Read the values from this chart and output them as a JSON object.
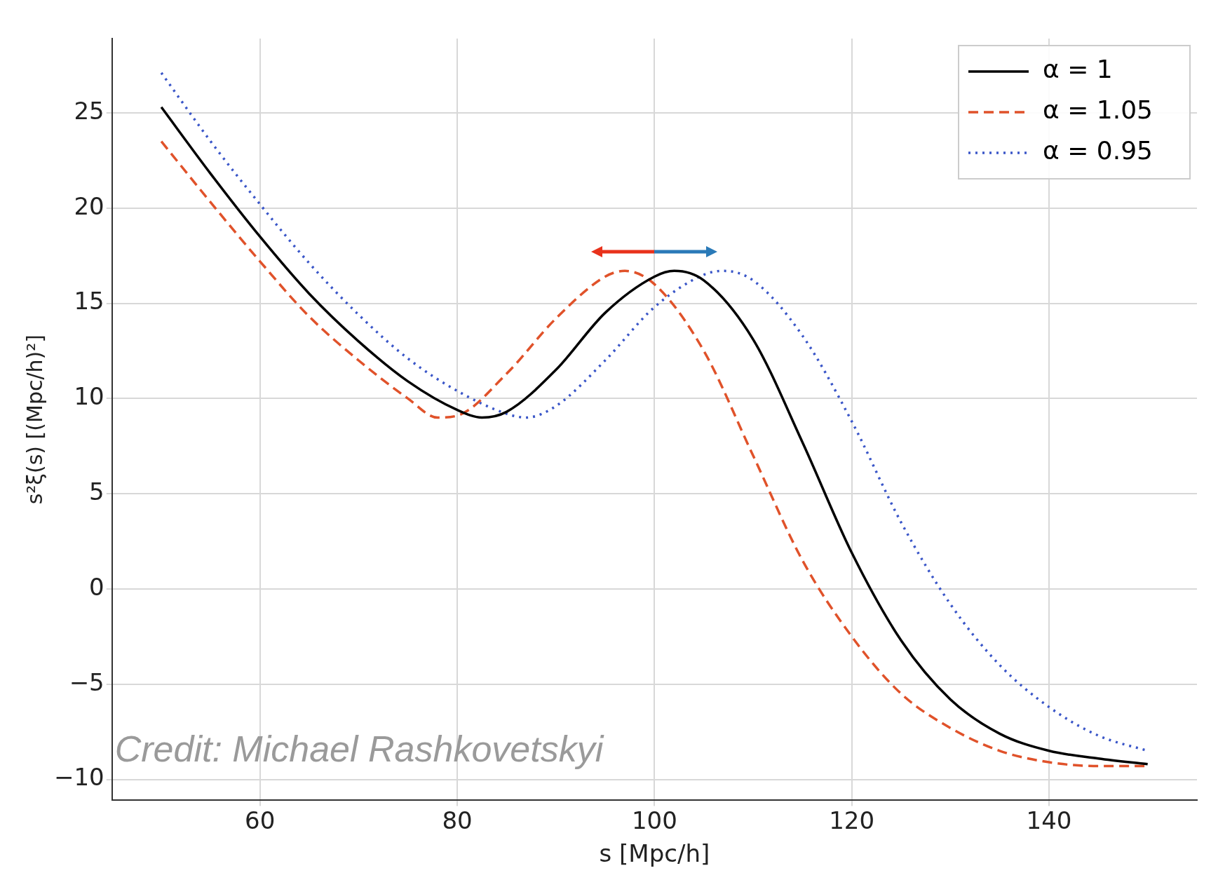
{
  "chart_data": {
    "type": "line",
    "xlabel": "s [Mpc/h]",
    "ylabel": "s²ξ(s) [(Mpc/h)²]",
    "xlim": [
      45,
      155
    ],
    "xticks": [
      60,
      80,
      100,
      120,
      140
    ],
    "ylim": [
      -11.1,
      28.9
    ],
    "yticks": [
      {
        "value": -10,
        "label": "−10"
      },
      {
        "value": -5,
        "label": "−5"
      },
      0,
      5,
      10,
      15,
      20,
      25
    ],
    "grid": true,
    "legend": "top right",
    "marker": "none",
    "annotations": [
      "Credit: Michael Rashkovetskyi"
    ],
    "series": [
      {
        "name": "α = 1",
        "color": "#000000",
        "line_style": "solid",
        "x": [
          50,
          55,
          60,
          65,
          70,
          75,
          80,
          82.5,
          85,
          90,
          95,
          100,
          102,
          105,
          110,
          115,
          120,
          125,
          130,
          135,
          140,
          145,
          150
        ],
        "values": [
          25.3,
          21.8,
          18.5,
          15.5,
          13,
          10.9,
          9.4,
          9.0,
          9.3,
          11.5,
          14.5,
          16.4,
          16.7,
          16.2,
          13.1,
          7.7,
          1.9,
          -2.7,
          -5.8,
          -7.6,
          -8.5,
          -8.9,
          -9.2
        ]
      },
      {
        "name": "α = 1.05",
        "color": "#e0522a",
        "line_style": "dashed",
        "x": [
          50,
          55,
          60,
          65,
          70,
          75,
          78,
          80,
          85,
          90,
          95,
          97,
          100,
          105,
          110,
          115,
          120,
          125,
          130,
          135,
          140,
          145,
          150
        ],
        "values": [
          23.5,
          20.3,
          17.2,
          14.3,
          12,
          10,
          9.0,
          9.1,
          11.3,
          14.2,
          16.4,
          16.7,
          16.0,
          12.5,
          7,
          1.5,
          -2.5,
          -5.5,
          -7.3,
          -8.5,
          -9.1,
          -9.3,
          -9.3
        ]
      },
      {
        "name": "α = 0.95",
        "color": "#3a56c8",
        "line_style": "dotted",
        "x": [
          50,
          55,
          60,
          65,
          70,
          75,
          80,
          85,
          87,
          90,
          95,
          100,
          105,
          107,
          110,
          115,
          120,
          125,
          130,
          135,
          140,
          145,
          150
        ],
        "values": [
          27.1,
          23.5,
          20.2,
          17.1,
          14.4,
          12.1,
          10.4,
          9.2,
          9.0,
          9.6,
          12,
          14.8,
          16.5,
          16.7,
          16.2,
          13.3,
          8.8,
          3.5,
          -0.8,
          -4,
          -6.2,
          -7.7,
          -8.5
        ]
      }
    ]
  }
}
